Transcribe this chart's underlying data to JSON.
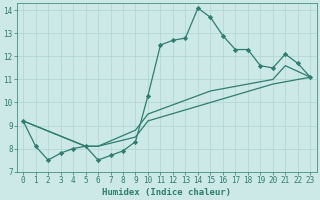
{
  "xlabel": "Humidex (Indice chaleur)",
  "xlim": [
    -0.5,
    23.5
  ],
  "ylim": [
    7,
    14.3
  ],
  "yticks": [
    7,
    8,
    9,
    10,
    11,
    12,
    13,
    14
  ],
  "xticks": [
    0,
    1,
    2,
    3,
    4,
    5,
    6,
    7,
    8,
    9,
    10,
    11,
    12,
    13,
    14,
    15,
    16,
    17,
    18,
    19,
    20,
    21,
    22,
    23
  ],
  "line_color": "#2e7d6e",
  "bg_color": "#cce9e8",
  "grid_color": "#aed4d2",
  "series1": [
    [
      0,
      9.2
    ],
    [
      1,
      8.1
    ],
    [
      2,
      7.5
    ],
    [
      3,
      7.8
    ],
    [
      4,
      8.0
    ],
    [
      5,
      8.1
    ],
    [
      6,
      7.5
    ],
    [
      7,
      7.7
    ],
    [
      8,
      7.9
    ],
    [
      9,
      8.3
    ],
    [
      10,
      10.3
    ],
    [
      11,
      12.5
    ],
    [
      12,
      12.7
    ],
    [
      13,
      12.8
    ],
    [
      14,
      14.1
    ],
    [
      15,
      13.7
    ],
    [
      16,
      12.9
    ],
    [
      17,
      12.3
    ],
    [
      18,
      12.3
    ],
    [
      19,
      11.6
    ],
    [
      20,
      11.5
    ],
    [
      21,
      12.1
    ],
    [
      22,
      11.7
    ],
    [
      23,
      11.1
    ]
  ],
  "series2": [
    [
      0,
      9.2
    ],
    [
      5,
      8.1
    ],
    [
      6,
      8.1
    ],
    [
      9,
      8.8
    ],
    [
      10,
      9.5
    ],
    [
      15,
      10.5
    ],
    [
      20,
      11.0
    ],
    [
      21,
      11.6
    ],
    [
      23,
      11.1
    ]
  ],
  "series3": [
    [
      0,
      9.2
    ],
    [
      5,
      8.1
    ],
    [
      6,
      8.1
    ],
    [
      9,
      8.5
    ],
    [
      10,
      9.2
    ],
    [
      15,
      10.0
    ],
    [
      20,
      10.8
    ],
    [
      23,
      11.1
    ]
  ]
}
